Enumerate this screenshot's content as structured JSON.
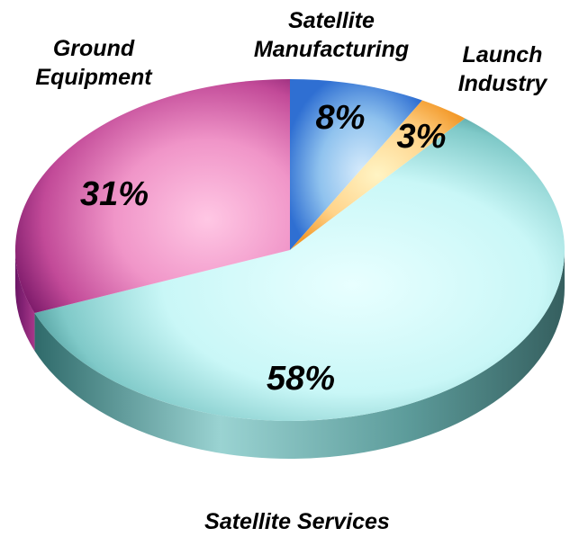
{
  "chart_data": {
    "type": "pie",
    "style": "3d",
    "categories": [
      "Satellite Manufacturing",
      "Launch Industry",
      "Satellite Services",
      "Ground Equipment"
    ],
    "values": [
      8,
      3,
      58,
      31
    ],
    "value_labels": [
      "8%",
      "3%",
      "58%",
      "31%"
    ],
    "label_lines": [
      [
        "Satellite",
        "Manufacturing"
      ],
      [
        "Launch",
        "Industry"
      ],
      [
        "Satellite Services"
      ],
      [
        "Ground",
        "Equipment"
      ]
    ],
    "colors": {
      "Satellite Manufacturing": "#8fc2ee",
      "Launch Industry": "#ffd38a",
      "Satellite Services": "#c9f7f7",
      "Ground Equipment": "#f095c8"
    }
  }
}
